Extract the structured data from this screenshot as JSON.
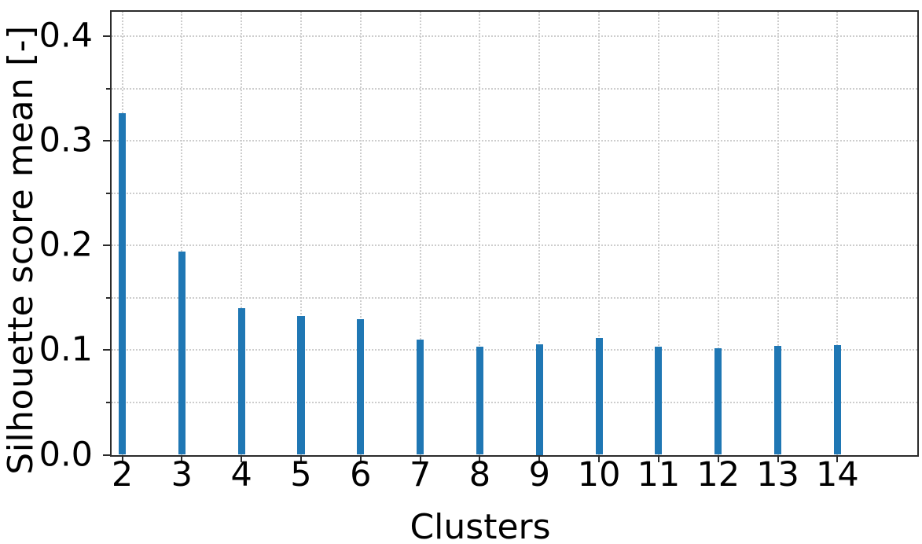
{
  "chart_data": {
    "type": "bar",
    "title": "",
    "xlabel": "Clusters",
    "ylabel": "Silhouette score mean [-]",
    "categories": [
      2,
      3,
      4,
      5,
      6,
      7,
      8,
      9,
      10,
      11,
      12,
      13,
      14
    ],
    "values": [
      0.327,
      0.194,
      0.14,
      0.133,
      0.13,
      0.11,
      0.103,
      0.106,
      0.112,
      0.103,
      0.102,
      0.104,
      0.105
    ],
    "x_tick_labels": [
      "2",
      "3",
      "4",
      "5",
      "6",
      "7",
      "8",
      "9",
      "10",
      "11",
      "12",
      "13",
      "14"
    ],
    "y_tick_labels": [
      "0.0",
      "0.1",
      "0.2",
      "0.3",
      "0.4"
    ],
    "y_major_values": [
      0,
      0.1,
      0.2,
      0.3,
      0.4
    ],
    "y_minor_values": [
      0.05,
      0.15,
      0.25,
      0.35
    ],
    "xlim": [
      1.815,
      15.34
    ],
    "ylim": [
      0,
      0.424
    ],
    "bar_width_units": 0.12,
    "grid": {
      "show": true,
      "style": "dotted",
      "color": "#cdcdcd",
      "axis": "both"
    },
    "legend": null,
    "colors": {
      "bar": "#1f77b4",
      "spine": "#2b2b2b",
      "tick": "#2b2b2b",
      "text": "#000000",
      "background": "#ffffff"
    }
  }
}
